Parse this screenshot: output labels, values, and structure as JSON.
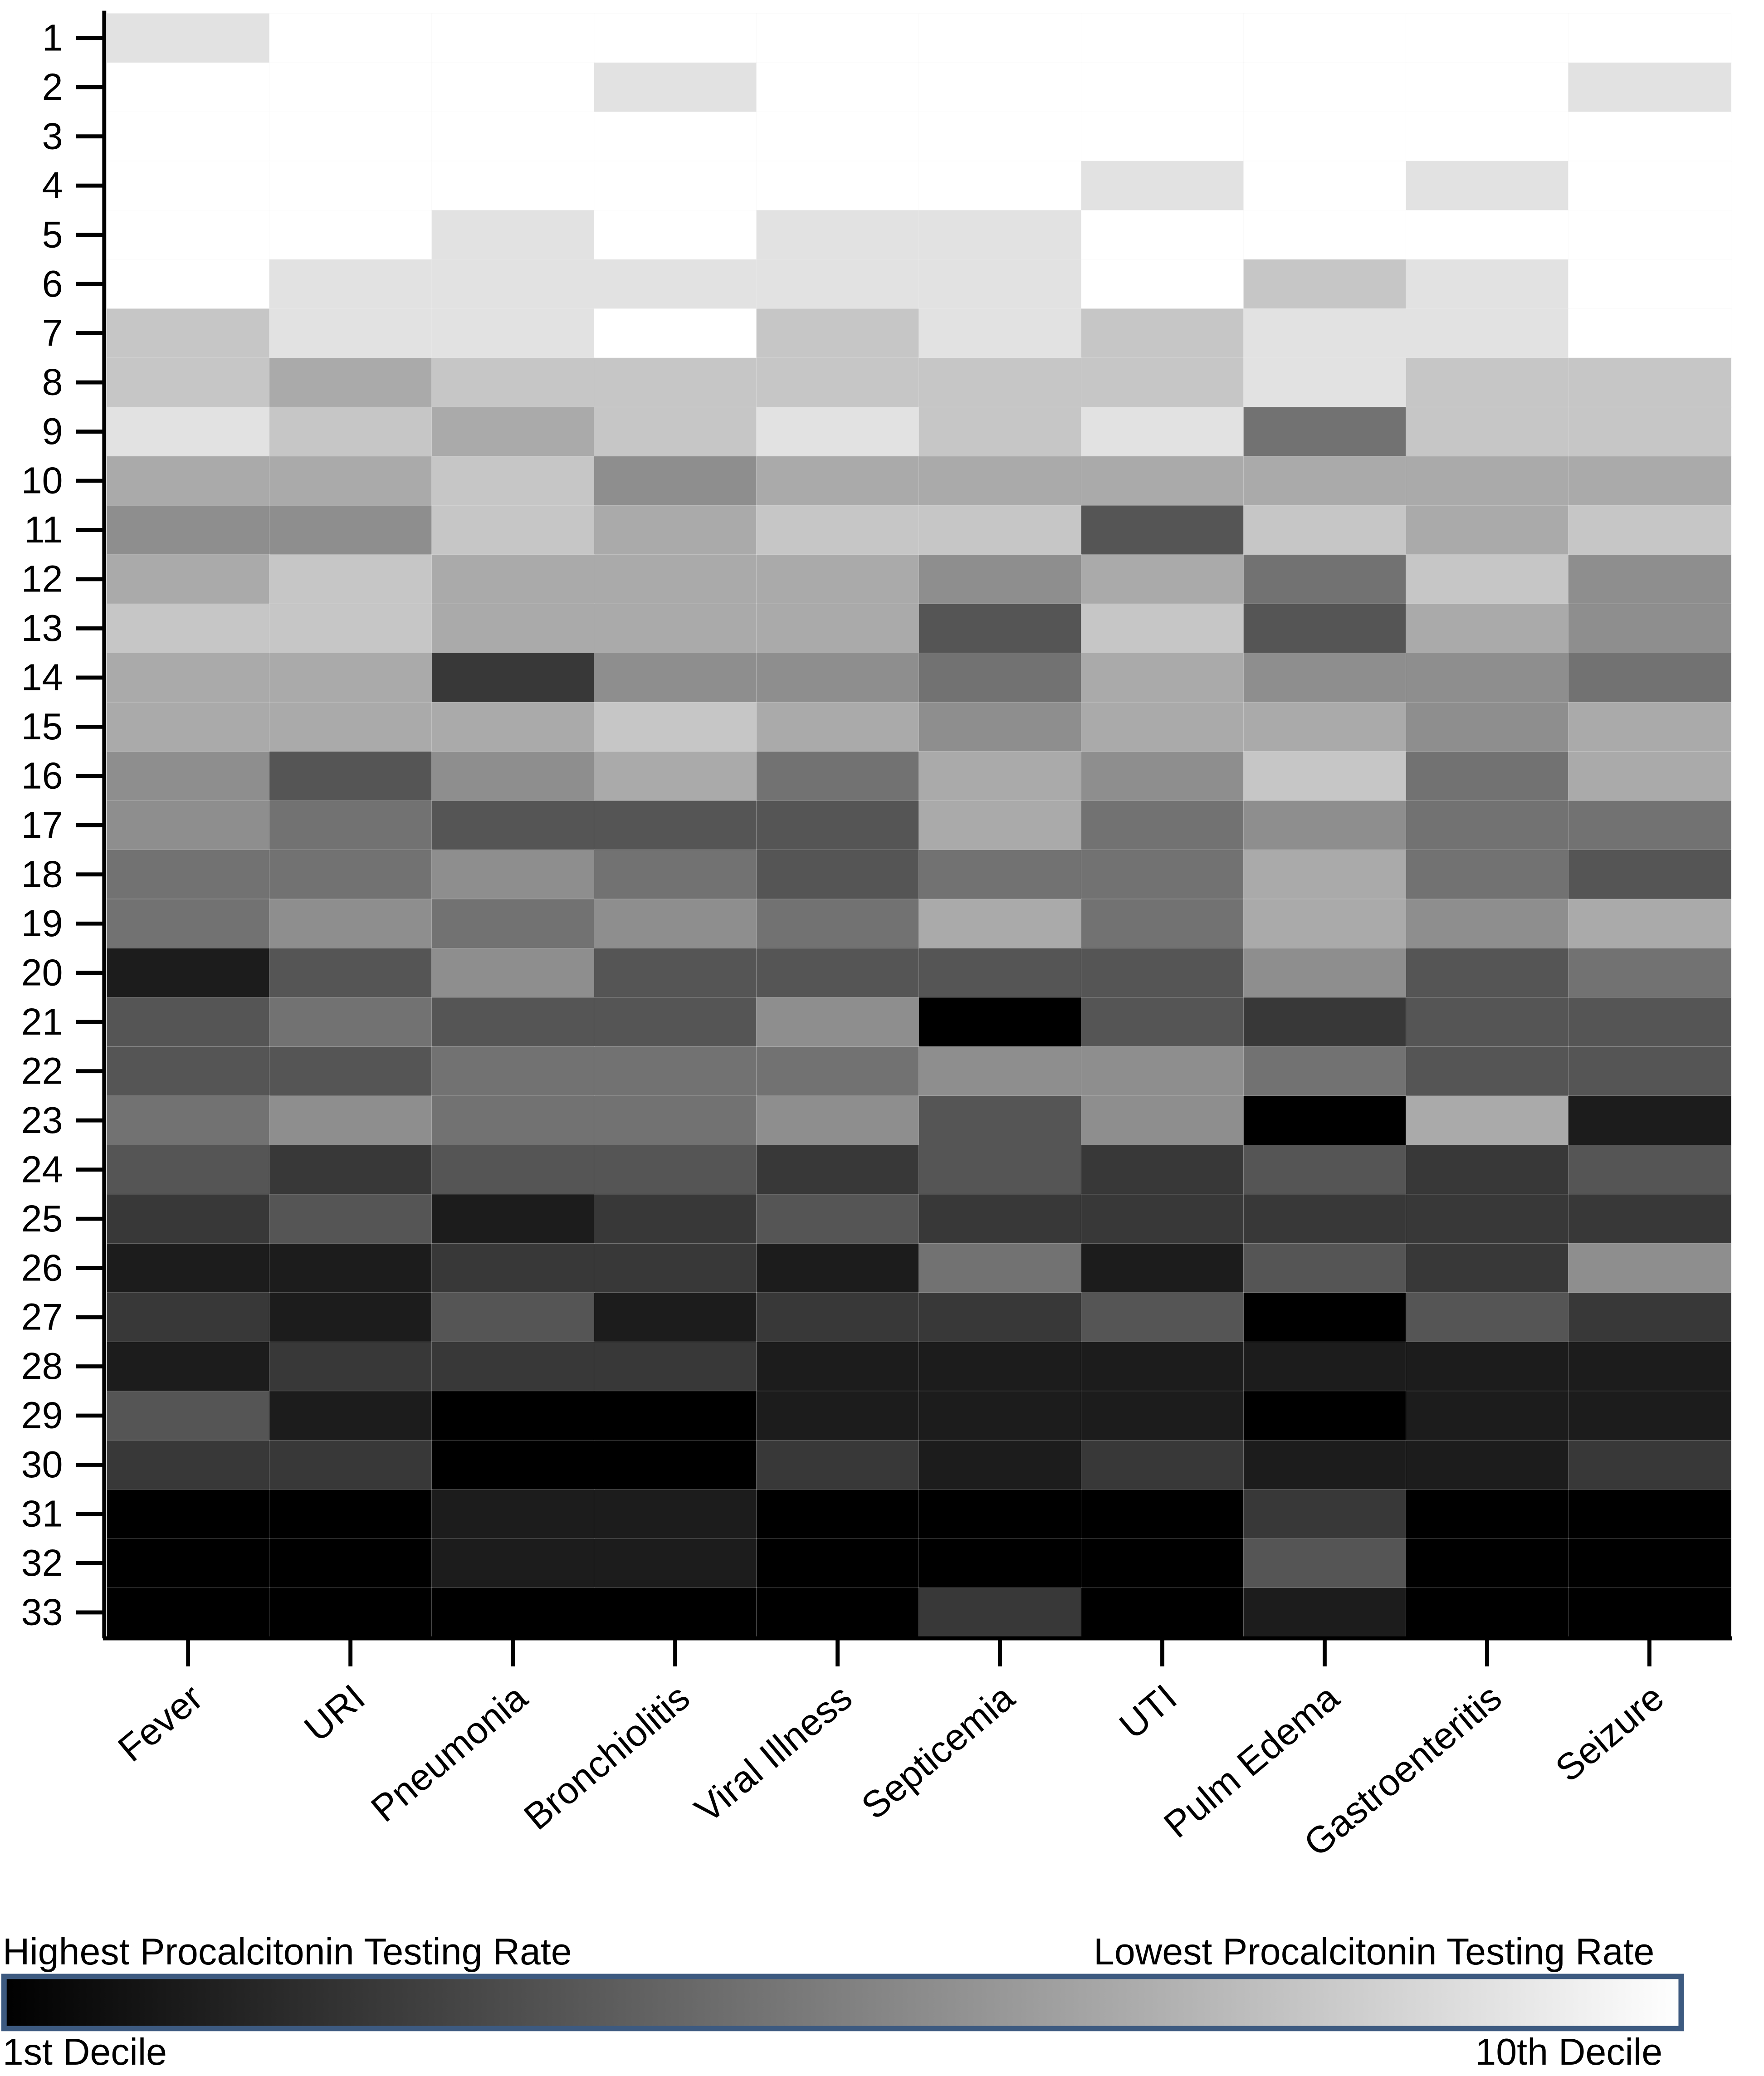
{
  "chart_data": {
    "type": "heatmap",
    "x": [
      "Fever",
      "URI",
      "Pneumonia",
      "Bronchiolitis",
      "Viral Illness",
      "Septicemia",
      "UTI",
      "Pulm Edema",
      "Gastroenteritis",
      "Seizure"
    ],
    "y": [
      1,
      2,
      3,
      4,
      5,
      6,
      7,
      8,
      9,
      10,
      11,
      12,
      13,
      14,
      15,
      16,
      17,
      18,
      19,
      20,
      21,
      22,
      23,
      24,
      25,
      26,
      27,
      28,
      29,
      30,
      31,
      32,
      33
    ],
    "values": [
      [
        9,
        10,
        10,
        10,
        10,
        10,
        10,
        10,
        10,
        10
      ],
      [
        10,
        10,
        10,
        9,
        10,
        10,
        10,
        10,
        10,
        9
      ],
      [
        10,
        10,
        10,
        10,
        10,
        10,
        10,
        10,
        10,
        10
      ],
      [
        10,
        10,
        10,
        10,
        10,
        10,
        9,
        10,
        9,
        10
      ],
      [
        10,
        10,
        9,
        10,
        9,
        9,
        10,
        10,
        10,
        10
      ],
      [
        10,
        9,
        9,
        9,
        9,
        9,
        10,
        8,
        9,
        10
      ],
      [
        8,
        9,
        9,
        10,
        8,
        9,
        8,
        9,
        9,
        10
      ],
      [
        8,
        7,
        8,
        8,
        8,
        8,
        8,
        9,
        8,
        8
      ],
      [
        9,
        8,
        7,
        8,
        9,
        8,
        9,
        5,
        8,
        8
      ],
      [
        7,
        7,
        8,
        6,
        7,
        7,
        7,
        7,
        7,
        7
      ],
      [
        6,
        6,
        8,
        7,
        8,
        8,
        4,
        8,
        7,
        8
      ],
      [
        7,
        8,
        7,
        7,
        7,
        6,
        7,
        5,
        8,
        6
      ],
      [
        8,
        8,
        7,
        7,
        7,
        4,
        8,
        4,
        7,
        6
      ],
      [
        7,
        7,
        3,
        6,
        6,
        5,
        7,
        6,
        6,
        5
      ],
      [
        7,
        7,
        7,
        8,
        7,
        6,
        7,
        7,
        6,
        7
      ],
      [
        6,
        4,
        6,
        7,
        5,
        7,
        6,
        8,
        5,
        7
      ],
      [
        6,
        5,
        4,
        4,
        4,
        7,
        5,
        6,
        5,
        5
      ],
      [
        5,
        5,
        6,
        5,
        4,
        5,
        5,
        7,
        5,
        4
      ],
      [
        5,
        6,
        5,
        6,
        5,
        7,
        5,
        7,
        6,
        7
      ],
      [
        2,
        4,
        6,
        4,
        4,
        4,
        4,
        6,
        4,
        5
      ],
      [
        4,
        5,
        4,
        4,
        6,
        1,
        4,
        3,
        4,
        4
      ],
      [
        4,
        4,
        5,
        5,
        5,
        6,
        6,
        5,
        4,
        4
      ],
      [
        5,
        6,
        5,
        5,
        6,
        4,
        6,
        1,
        7,
        2
      ],
      [
        4,
        3,
        4,
        4,
        3,
        4,
        3,
        4,
        3,
        4
      ],
      [
        3,
        4,
        2,
        3,
        4,
        3,
        3,
        3,
        3,
        3
      ],
      [
        2,
        2,
        3,
        3,
        2,
        5,
        2,
        4,
        3,
        6
      ],
      [
        3,
        2,
        4,
        2,
        3,
        3,
        4,
        1,
        4,
        3
      ],
      [
        2,
        3,
        3,
        3,
        2,
        2,
        2,
        2,
        2,
        2
      ],
      [
        4,
        2,
        1,
        1,
        2,
        2,
        2,
        1,
        2,
        2
      ],
      [
        3,
        3,
        1,
        1,
        3,
        2,
        3,
        2,
        2,
        3
      ],
      [
        1,
        1,
        2,
        2,
        1,
        1,
        1,
        3,
        1,
        1
      ],
      [
        1,
        1,
        2,
        2,
        1,
        1,
        1,
        4,
        1,
        1
      ],
      [
        1,
        1,
        1,
        1,
        1,
        3,
        1,
        2,
        1,
        1
      ]
    ],
    "color_scale": [
      "#000000",
      "#1c1c1c",
      "#383838",
      "#555555",
      "#727272",
      "#8e8e8e",
      "#aaaaaa",
      "#c6c6c6",
      "#e2e2e2",
      "#ffffff"
    ],
    "legend": {
      "left_title": "Highest Procalcitonin Testing Rate",
      "right_title": "Lowest Procalcitonin Testing Rate",
      "left_label": "1st Decile",
      "right_label": "10th Decile",
      "border_color": "#3d5a80"
    }
  }
}
